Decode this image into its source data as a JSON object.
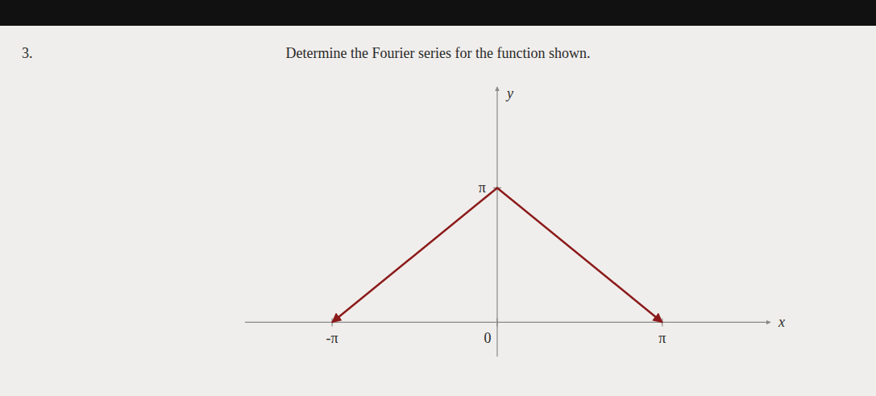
{
  "chart_data": {
    "type": "line",
    "title": "Determine the Fourier series for the function shown.",
    "annotations": [
      "3."
    ],
    "x": [
      -3.14159265,
      0.0,
      3.14159265
    ],
    "values": [
      0.0,
      3.14159265,
      0.0
    ],
    "color": "#8b1a1a",
    "marker": "arrow",
    "xlim": [
      -4.8,
      5.2
    ],
    "ylim": [
      -0.8,
      5.5
    ],
    "xticks": [
      {
        "value": -3.14159265,
        "label": "-π"
      },
      0,
      {
        "value": 3.14159265,
        "label": "π"
      }
    ],
    "yticks": [
      {
        "value": 3.14159265,
        "label": "π"
      }
    ],
    "xlabel": "x",
    "ylabel": "y",
    "grid": false
  }
}
